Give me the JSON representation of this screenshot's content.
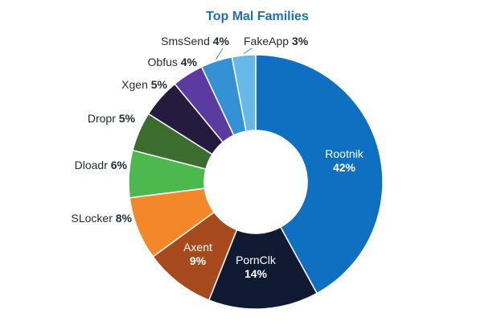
{
  "chart_data": {
    "type": "pie",
    "title": "Top Mal Families",
    "donut": true,
    "slices": [
      {
        "name": "Rootnik",
        "value": 42,
        "label": "42%",
        "color": "#0f6fc0",
        "label_position": "inside",
        "label_color": "#ffffff"
      },
      {
        "name": "PornClk",
        "value": 14,
        "label": "14%",
        "color": "#101a33",
        "label_position": "inside",
        "label_color": "#ffffff"
      },
      {
        "name": "Axent",
        "value": 9,
        "label": "9%",
        "color": "#a64a1d",
        "label_position": "inside",
        "label_color": "#ffffff"
      },
      {
        "name": "SLocker",
        "value": 8,
        "label": "8%",
        "color": "#f4872a",
        "label_position": "outside",
        "label_color": "#1f2a36"
      },
      {
        "name": "Dloadr",
        "value": 6,
        "label": "6%",
        "color": "#4db84d",
        "label_position": "outside",
        "label_color": "#1f2a36"
      },
      {
        "name": "Dropr",
        "value": 5,
        "label": "5%",
        "color": "#3b6e2e",
        "label_position": "outside",
        "label_color": "#1f2a36"
      },
      {
        "name": "Xgen",
        "value": 5,
        "label": "5%",
        "color": "#241b3f",
        "label_position": "outside",
        "label_color": "#1f2a36"
      },
      {
        "name": "Obfus",
        "value": 4,
        "label": "4%",
        "color": "#5b3aa2",
        "label_position": "outside",
        "label_color": "#1f2a36"
      },
      {
        "name": "SmsSend",
        "value": 4,
        "label": "4%",
        "color": "#3591d6",
        "label_position": "outside",
        "label_color": "#1f2a36"
      },
      {
        "name": "FakeApp",
        "value": 3,
        "label": "3%",
        "color": "#66b8e8",
        "label_position": "outside",
        "label_color": "#1f2a36"
      }
    ],
    "colors": {
      "title": "#1d6fb8",
      "label_text": "#1f2a36",
      "slice_border": "#ffffff",
      "leader_line": "#3591d6"
    }
  }
}
